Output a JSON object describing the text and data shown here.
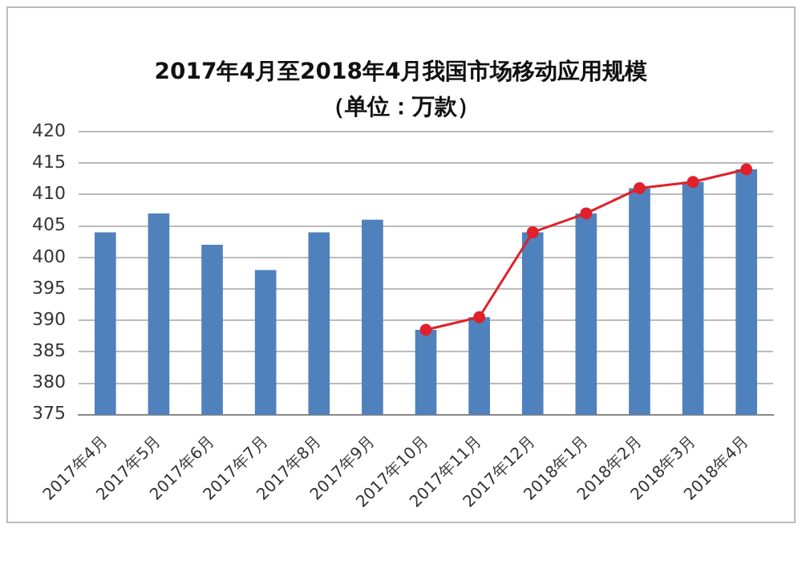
{
  "chart_data": {
    "type": "bar",
    "title": "2017年4月至2018年4月我国市场移动应用规模",
    "subtitle": "（单位：万款）",
    "categories": [
      "2017年4月",
      "2017年5月",
      "2017年6月",
      "2017年7月",
      "2017年8月",
      "2017年9月",
      "2017年10月",
      "2017年11月",
      "2017年12月",
      "2018年1月",
      "2018年2月",
      "2018年3月",
      "2018年4月"
    ],
    "series": [
      {
        "color": "#4f81bd",
        "values": [
          404,
          407,
          402,
          398,
          404,
          406,
          388.5,
          390.5,
          404,
          407,
          411,
          412,
          414
        ]
      },
      {
        "type": "line",
        "color": "#e0202a",
        "values": [
          null,
          null,
          null,
          null,
          null,
          null,
          388.5,
          390.5,
          404,
          407,
          411,
          412,
          414
        ]
      }
    ],
    "ylim": [
      375,
      420
    ],
    "yticks": [
      375,
      380,
      385,
      390,
      395,
      400,
      405,
      410,
      415,
      420
    ],
    "grid": "y",
    "legend": false,
    "marker": "circle"
  }
}
